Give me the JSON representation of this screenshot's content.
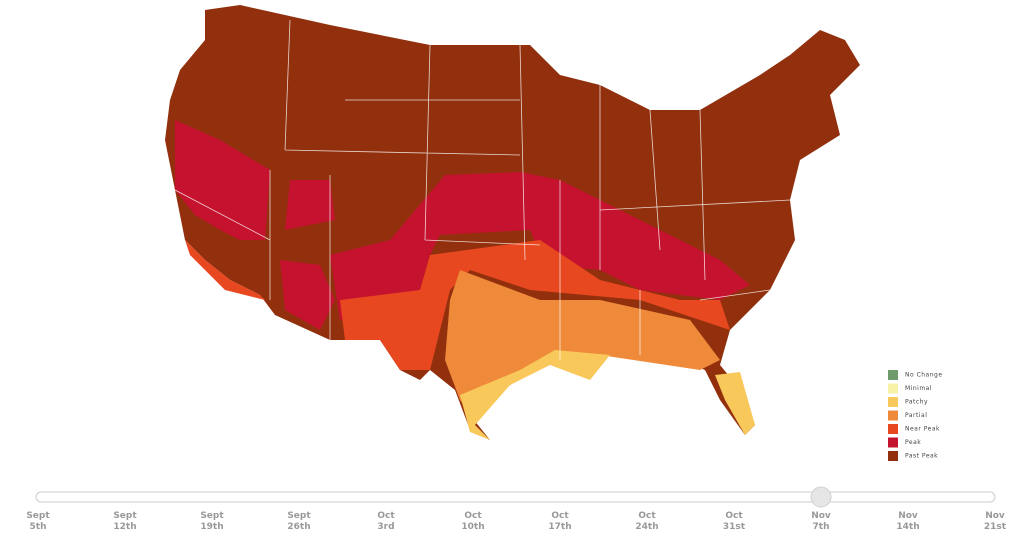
{
  "legend": [
    {
      "label": "No Change",
      "color": "#6f9a6b"
    },
    {
      "label": "Minimal",
      "color": "#f7f2a6"
    },
    {
      "label": "Patchy",
      "color": "#f9c85a"
    },
    {
      "label": "Partial",
      "color": "#f08a3b"
    },
    {
      "label": "Near Peak",
      "color": "#e8481f"
    },
    {
      "label": "Peak",
      "color": "#c4122f"
    },
    {
      "label": "Past Peak",
      "color": "#92300e"
    }
  ],
  "timeline": {
    "selected": 9,
    "dates": [
      {
        "month": "Sept",
        "day": "5th"
      },
      {
        "month": "Sept",
        "day": "12th"
      },
      {
        "month": "Sept",
        "day": "19th"
      },
      {
        "month": "Sept",
        "day": "26th"
      },
      {
        "month": "Oct",
        "day": "3rd"
      },
      {
        "month": "Oct",
        "day": "10th"
      },
      {
        "month": "Oct",
        "day": "17th"
      },
      {
        "month": "Oct",
        "day": "24th"
      },
      {
        "month": "Oct",
        "day": "31st"
      },
      {
        "month": "Nov",
        "day": "7th"
      },
      {
        "month": "Nov",
        "day": "14th"
      },
      {
        "month": "Nov",
        "day": "21st"
      }
    ]
  }
}
